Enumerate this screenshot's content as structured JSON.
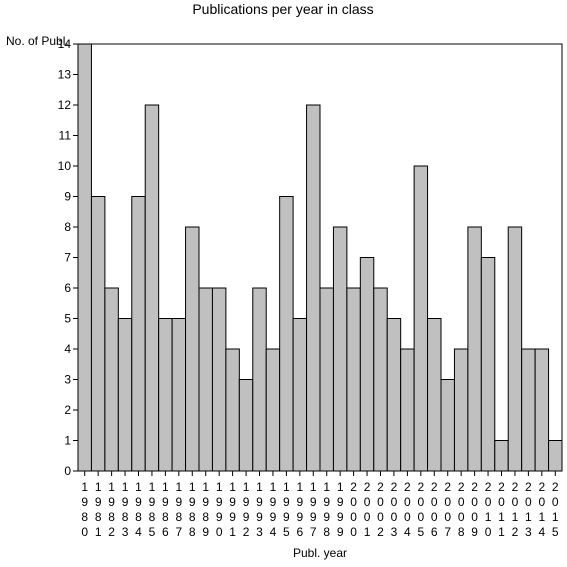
{
  "chart_data": {
    "type": "bar",
    "title": "Publications per year in class",
    "xlabel": "Publ. year",
    "ylabel": "No. of Publ.",
    "ylim": [
      0,
      14
    ],
    "yticks": [
      0,
      1,
      2,
      3,
      4,
      5,
      6,
      7,
      8,
      9,
      10,
      11,
      12,
      13,
      14
    ],
    "grid": false,
    "legend": "none",
    "bar_color": "#c0c0c0",
    "categories": [
      "1980",
      "1981",
      "1982",
      "1983",
      "1984",
      "1985",
      "1986",
      "1987",
      "1988",
      "1989",
      "1990",
      "1991",
      "1992",
      "1993",
      "1994",
      "1995",
      "1996",
      "1997",
      "1998",
      "1999",
      "2000",
      "2001",
      "2002",
      "2003",
      "2004",
      "2005",
      "2006",
      "2007",
      "2008",
      "2009",
      "2010",
      "2011",
      "2012",
      "2013",
      "2014",
      "2015"
    ],
    "values": [
      14,
      9,
      6,
      5,
      9,
      12,
      5,
      5,
      8,
      6,
      6,
      4,
      3,
      6,
      4,
      9,
      5,
      12,
      6,
      8,
      6,
      7,
      6,
      5,
      4,
      10,
      5,
      3,
      4,
      8,
      7,
      1,
      8,
      4,
      4,
      1
    ]
  }
}
